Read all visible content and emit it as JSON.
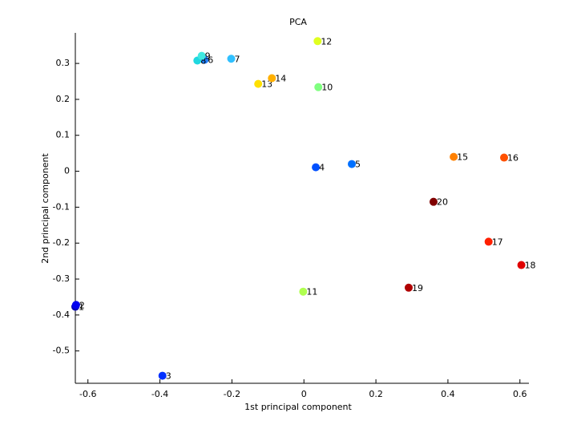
{
  "chart_data": {
    "type": "scatter",
    "title": "PCA",
    "x_label": "1st principal component",
    "y_label": "2nd principal component",
    "xlim": [
      -0.635,
      0.625
    ],
    "ylim": [
      -0.59,
      0.385
    ],
    "xticks": [
      -0.6,
      -0.4,
      -0.2,
      0,
      0.2,
      0.4,
      0.6
    ],
    "yticks": [
      -0.5,
      -0.4,
      -0.3,
      -0.2,
      -0.1,
      0,
      0.1,
      0.2,
      0.3
    ],
    "point_labels": [
      "1",
      "2",
      "3",
      "4",
      "5",
      "6",
      "7",
      "8",
      "9",
      "10",
      "11",
      "12",
      "13",
      "14",
      "15",
      "16",
      "17",
      "18",
      "19",
      "20"
    ],
    "x": [
      -0.635,
      -0.633,
      -0.393,
      0.033,
      0.133,
      -0.276,
      -0.202,
      -0.296,
      -0.284,
      0.04,
      -0.002,
      0.038,
      -0.127,
      -0.089,
      0.416,
      0.556,
      0.513,
      0.604,
      0.291,
      0.36
    ],
    "values": [
      -0.377,
      -0.372,
      -0.569,
      0.011,
      0.02,
      0.31,
      0.313,
      0.308,
      0.321,
      0.234,
      -0.335,
      0.362,
      0.243,
      0.259,
      0.04,
      0.038,
      -0.196,
      -0.261,
      -0.324,
      -0.085
    ],
    "colors": [
      "#0000b3",
      "#0000f0",
      "#0030ff",
      "#0050ff",
      "#0070ff",
      "#2080ff",
      "#30c0ff",
      "#20d8e0",
      "#40e8e0",
      "#80ff80",
      "#b0ff50",
      "#e0ff20",
      "#ffe000",
      "#ffb000",
      "#ff8000",
      "#ff5000",
      "#ff2000",
      "#e00000",
      "#b00000",
      "#800000"
    ]
  }
}
